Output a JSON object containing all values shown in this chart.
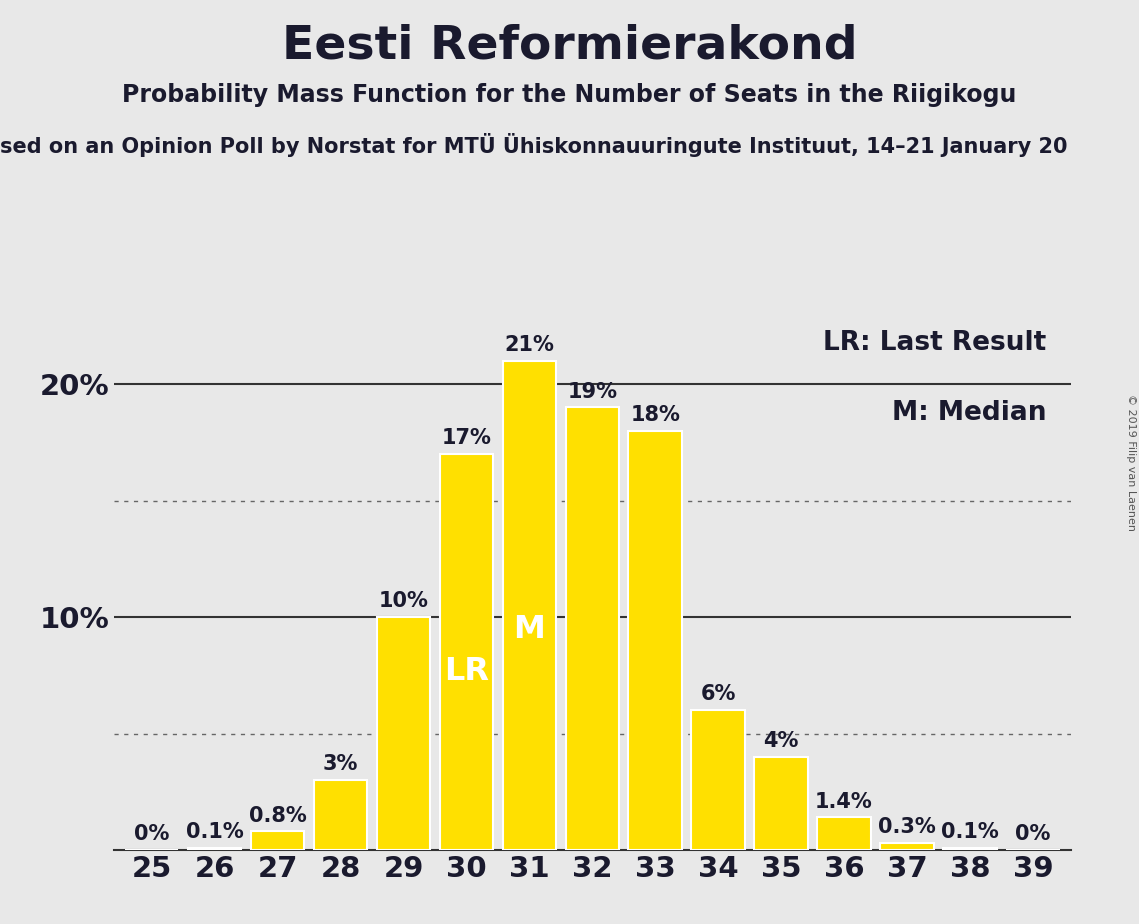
{
  "title": "Eesti Reformierakond",
  "subtitle": "Probability Mass Function for the Number of Seats in the Riigikogu",
  "subtitle2": "sed on an Opinion Poll by Norstat for MTÜ Ühiskonnauuringute Instituut, 14–21 January 20",
  "copyright": "© 2019 Filip van Laenen",
  "background_color": "#e8e8e8",
  "bar_color": "#FFE000",
  "bar_edge_color": "#ffffff",
  "seats": [
    25,
    26,
    27,
    28,
    29,
    30,
    31,
    32,
    33,
    34,
    35,
    36,
    37,
    38,
    39
  ],
  "probabilities": [
    0.0,
    0.1,
    0.8,
    3.0,
    10.0,
    17.0,
    21.0,
    19.0,
    18.0,
    6.0,
    4.0,
    1.4,
    0.3,
    0.1,
    0.0
  ],
  "labels": [
    "0%",
    "0.1%",
    "0.8%",
    "3%",
    "10%",
    "17%",
    "21%",
    "19%",
    "18%",
    "6%",
    "4%",
    "1.4%",
    "0.3%",
    "0.1%",
    "0%"
  ],
  "ylim": [
    0,
    23
  ],
  "dotted_lines": [
    5,
    15
  ],
  "solid_lines": [
    10,
    20
  ],
  "LR_seat": 30,
  "M_seat": 31,
  "title_fontsize": 34,
  "subtitle_fontsize": 17,
  "subtitle2_fontsize": 15,
  "tick_fontsize": 21,
  "legend_fontsize": 19,
  "bar_label_fontsize": 15,
  "bar_label_color_dark": "#1a1a2e",
  "bar_label_color_light": "#ffffff"
}
